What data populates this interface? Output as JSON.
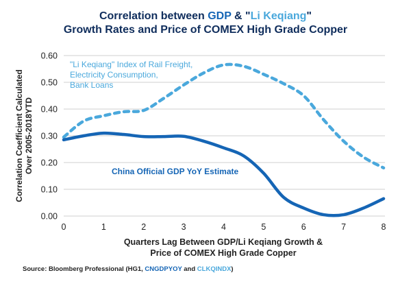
{
  "chart_data": {
    "type": "line",
    "title_parts": {
      "prefix": "Correlation between ",
      "gdp": "GDP",
      "amp": " & \"",
      "lk": "Li Keqiang",
      "suffix": "\"",
      "line2": "Growth Rates and Price of COMEX High Grade Copper"
    },
    "title": "Correlation between GDP & \"Li Keqiang\" Growth Rates and Price of COMEX High Grade Copper",
    "xlabel_lines": [
      "Quarters Lag Between GDP/Li Keqiang Growth &",
      "Price of COMEX High Grade Copper"
    ],
    "ylabel_lines": [
      "Correlation Coefficient Calculated",
      "Over 2005-2018YTD"
    ],
    "xlim": [
      0,
      8
    ],
    "ylim": [
      0,
      0.6
    ],
    "xticks": [
      "0",
      "1",
      "2",
      "3",
      "4",
      "5",
      "6",
      "7",
      "8"
    ],
    "yticks": [
      "0.00",
      "0.10",
      "0.20",
      "0.30",
      "0.40",
      "0.50",
      "0.60"
    ],
    "ytick_values": [
      0,
      0.1,
      0.2,
      0.3,
      0.4,
      0.5,
      0.6
    ],
    "grid": "horizontal",
    "x": [
      0,
      0.5,
      1,
      1.5,
      2,
      2.5,
      3,
      3.5,
      4,
      4.5,
      5,
      5.5,
      6,
      6.5,
      7,
      7.5,
      8
    ],
    "series": [
      {
        "name": "\"Li Keqiang\" Index of Rail Freight, Electricity Consumption, Bank Loans",
        "label_lines": [
          "\"Li Keqiang\" Index of Rail Freight,",
          "Electricity Consumption,",
          "Bank Loans"
        ],
        "style": "dashed",
        "color": "#4aa8dc",
        "values": [
          0.295,
          0.355,
          0.375,
          0.39,
          0.395,
          0.44,
          0.49,
          0.535,
          0.565,
          0.56,
          0.53,
          0.495,
          0.45,
          0.36,
          0.28,
          0.22,
          0.18
        ]
      },
      {
        "name": "China Official GDP YoY Estimate",
        "label_lines": [
          "China Official GDP YoY Estimate"
        ],
        "style": "solid",
        "color": "#1565b5",
        "values": [
          0.285,
          0.3,
          0.31,
          0.305,
          0.297,
          0.297,
          0.298,
          0.28,
          0.255,
          0.225,
          0.16,
          0.07,
          0.03,
          0.005,
          0.005,
          0.03,
          0.065
        ]
      }
    ]
  },
  "source": {
    "prefix": "Source: Bloomberg Professional (HG1, ",
    "code1": "CNGDPYOY",
    "mid": " and ",
    "code2": "CLKQINDX",
    "suffix": ")"
  }
}
